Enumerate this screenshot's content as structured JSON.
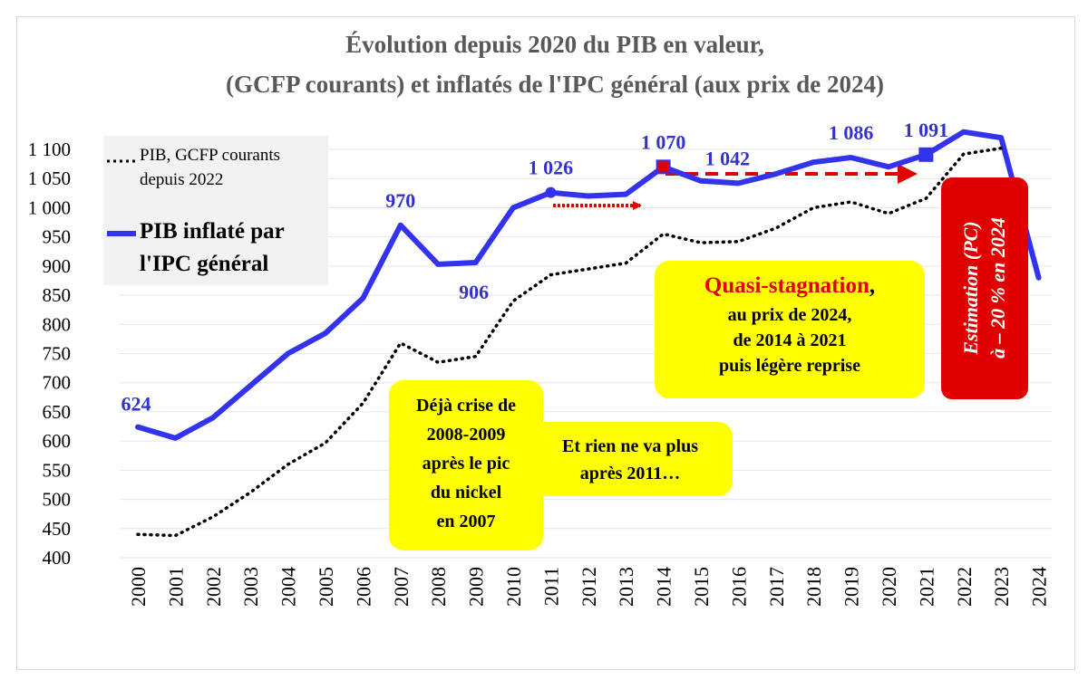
{
  "chart_data": {
    "type": "line",
    "title": [
      "Évolution depuis 2020 du PIB en valeur,",
      "(GCFP courants) et inflatés de l'IPC général (aux prix de 2024)"
    ],
    "x": [
      "2000",
      "2001",
      "2002",
      "2003",
      "2004",
      "2005",
      "2006",
      "2007",
      "2008",
      "2009",
      "2010",
      "2011",
      "2012",
      "2013",
      "2014",
      "2015",
      "2016",
      "2017",
      "2018",
      "2019",
      "2020",
      "2021",
      "2022",
      "2023",
      "2024"
    ],
    "yticks": [
      "400",
      "450",
      "500",
      "550",
      "600",
      "650",
      "700",
      "750",
      "800",
      "850",
      "900",
      "950",
      "1 000",
      "1 050",
      "1 100"
    ],
    "ylim": [
      400,
      1100
    ],
    "series": [
      {
        "name": "PIB inflaté par l'IPC général",
        "style": "solid",
        "color": "#3333ee",
        "values": [
          624,
          605,
          640,
          695,
          750,
          785,
          845,
          970,
          903,
          906,
          1000,
          1026,
          1020,
          1023,
          1070,
          1046,
          1042,
          1058,
          1078,
          1086,
          1070,
          1091,
          1130,
          1120,
          880
        ]
      },
      {
        "name": "PIB, GCFP courants depuis 2022",
        "style": "dotted",
        "color": "#000000",
        "values": [
          440,
          438,
          470,
          512,
          560,
          597,
          665,
          768,
          735,
          745,
          840,
          885,
          895,
          905,
          955,
          940,
          942,
          965,
          1000,
          1010,
          990,
          1016,
          1092,
          1102,
          null
        ]
      }
    ],
    "data_labels": [
      {
        "index": 0,
        "text": "624"
      },
      {
        "index": 7,
        "text": "970"
      },
      {
        "index": 9,
        "text": "906"
      },
      {
        "index": 11,
        "text": "1 026"
      },
      {
        "index": 14,
        "text": "1 070"
      },
      {
        "index": 16,
        "text": "1 042"
      },
      {
        "index": 19,
        "text": "1 086"
      },
      {
        "index": 21,
        "text": "1 091"
      }
    ],
    "legend": {
      "dotted_lines": [
        "PIB, GCFP courants",
        "depuis 2022"
      ],
      "solid_lines": [
        "PIB inflaté par",
        "l'IPC général"
      ]
    }
  },
  "annotations": {
    "stagnation": {
      "highlight": "Quasi-stagnation",
      "comma": ",",
      "lines": [
        "au prix de 2024,",
        "de 2014 à 2021",
        "puis légère reprise"
      ]
    },
    "crisis": [
      "Déjà crise de",
      "2008-2009",
      "après le pic",
      "du nickel",
      "en 2007"
    ],
    "after2011": [
      "Et rien ne va plus",
      "après 2011…"
    ],
    "estimate": [
      "Estimation (PC)",
      "à – 20 % en 2024"
    ]
  },
  "colors": {
    "solid": "#3333ee",
    "label": "#3333cc",
    "arrow": "#e00000",
    "box": "#ffff00",
    "estimate_box": "#e00000"
  }
}
